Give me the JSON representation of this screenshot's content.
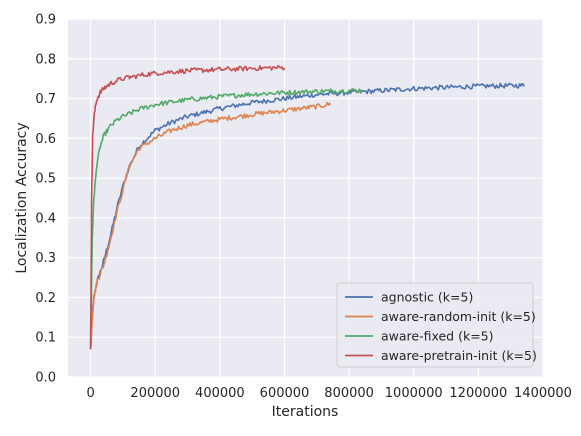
{
  "chart_data": {
    "type": "line",
    "xlabel": "Iterations",
    "ylabel": "Localization Accuracy",
    "xlim": [
      -70000,
      1400000
    ],
    "ylim": [
      0.0,
      0.9
    ],
    "xticks": [
      0,
      200000,
      400000,
      600000,
      800000,
      1000000,
      1200000,
      1400000
    ],
    "xtick_labels": [
      "0",
      "200000",
      "400000",
      "600000",
      "800000",
      "1000000",
      "1200000",
      "1400000"
    ],
    "yticks": [
      0.0,
      0.1,
      0.2,
      0.3,
      0.4,
      0.5,
      0.6,
      0.7,
      0.8,
      0.9
    ],
    "ytick_labels": [
      "0.0",
      "0.1",
      "0.2",
      "0.3",
      "0.4",
      "0.5",
      "0.6",
      "0.7",
      "0.8",
      "0.9"
    ],
    "grid": true,
    "background": "#eaeaf2",
    "legend_position": "bottom-right",
    "series": [
      {
        "name": "agnostic (k=5)",
        "color": "#4c72b0",
        "x": [
          0,
          5000,
          10000,
          20000,
          40000,
          60000,
          80000,
          100000,
          120000,
          150000,
          200000,
          250000,
          300000,
          400000,
          500000,
          600000,
          700000,
          800000,
          900000,
          1000000,
          1100000,
          1200000,
          1340000
        ],
        "y": [
          0.07,
          0.15,
          0.2,
          0.24,
          0.29,
          0.35,
          0.42,
          0.48,
          0.53,
          0.58,
          0.62,
          0.64,
          0.655,
          0.675,
          0.69,
          0.7,
          0.71,
          0.715,
          0.72,
          0.725,
          0.728,
          0.731,
          0.733
        ]
      },
      {
        "name": "aware-random-init (k=5)",
        "color": "#dd8452",
        "x": [
          0,
          5000,
          10000,
          20000,
          40000,
          60000,
          80000,
          100000,
          120000,
          150000,
          200000,
          250000,
          300000,
          400000,
          500000,
          600000,
          700000,
          740000
        ],
        "y": [
          0.08,
          0.14,
          0.2,
          0.24,
          0.28,
          0.34,
          0.41,
          0.47,
          0.53,
          0.575,
          0.6,
          0.62,
          0.633,
          0.648,
          0.66,
          0.67,
          0.68,
          0.686
        ]
      },
      {
        "name": "aware-fixed (k=5)",
        "color": "#55a868",
        "x": [
          0,
          5000,
          10000,
          20000,
          30000,
          40000,
          60000,
          80000,
          100000,
          150000,
          200000,
          300000,
          400000,
          500000,
          600000,
          700000,
          800000,
          840000
        ],
        "y": [
          0.08,
          0.35,
          0.45,
          0.54,
          0.58,
          0.605,
          0.63,
          0.645,
          0.655,
          0.673,
          0.685,
          0.697,
          0.705,
          0.711,
          0.715,
          0.718,
          0.72,
          0.721
        ]
      },
      {
        "name": "aware-pretrain-init (k=5)",
        "color": "#c44e52",
        "x": [
          0,
          3000,
          6000,
          10000,
          15000,
          20000,
          30000,
          40000,
          60000,
          80000,
          100000,
          150000,
          200000,
          250000,
          300000,
          400000,
          500000,
          600000
        ],
        "y": [
          0.07,
          0.45,
          0.6,
          0.65,
          0.68,
          0.7,
          0.715,
          0.725,
          0.737,
          0.745,
          0.75,
          0.758,
          0.764,
          0.767,
          0.77,
          0.773,
          0.776,
          0.778
        ]
      }
    ]
  }
}
